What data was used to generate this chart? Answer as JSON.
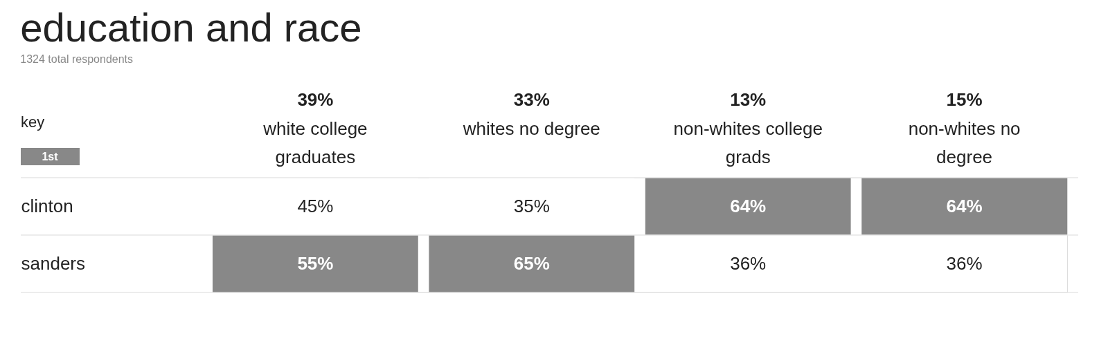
{
  "chart_data": {
    "type": "heatmap",
    "title": "education and race",
    "subtitle": "1324 total respondents",
    "categories": [
      "39% white college graduates",
      "33% whites no degree",
      "13% non-whites college grads",
      "15% non-whites no degree"
    ],
    "y_categories": [
      "clinton",
      "sanders"
    ],
    "cells": [
      [
        45,
        35,
        64,
        64
      ],
      [
        55,
        65,
        36,
        36
      ]
    ],
    "cell_labels": [
      [
        "45%",
        "35%",
        "64%",
        "64%"
      ],
      [
        "55%",
        "65%",
        "36%",
        "36%"
      ]
    ],
    "color": "#888888",
    "legend_title": "key",
    "annotations": [
      "1st"
    ],
    "grid": "y"
  }
}
